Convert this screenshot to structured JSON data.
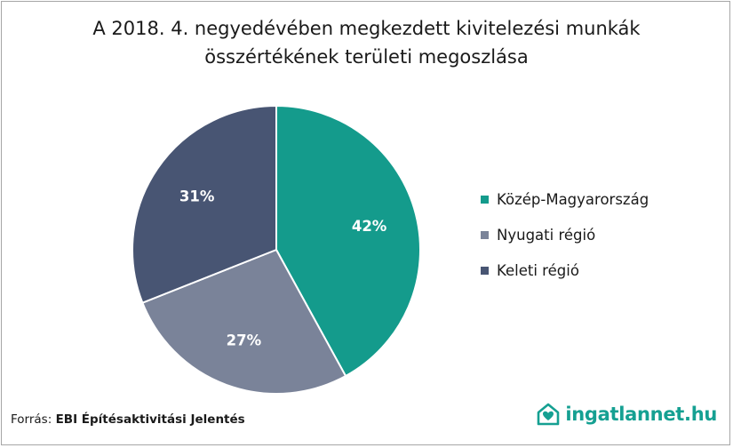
{
  "title_lines": [
    "A 2018. 4. negyedévében megkezdett kivitelezési munkák",
    "összértékének területi megoszlása"
  ],
  "chart_data": {
    "type": "pie",
    "title": "A 2018. 4. negyedévében megkezdett kivitelezési munkák összértékének területi megoszlása",
    "categories": [
      "Közép-Magyarország",
      "Nyugati régió",
      "Keleti régió"
    ],
    "values": [
      42,
      27,
      31
    ],
    "labels": [
      "42%",
      "27%",
      "31%"
    ],
    "colors": [
      "#149b8c",
      "#7a8399",
      "#485573"
    ],
    "start_angle_deg": 0,
    "direction": "clockwise",
    "legend_position": "right"
  },
  "source": {
    "prefix": "Forrás: ",
    "name": "EBI Építésaktivitási Jelentés"
  },
  "brand": {
    "icon": "house-heart-icon",
    "name": "ingatlannet.hu",
    "color": "#15a092"
  }
}
